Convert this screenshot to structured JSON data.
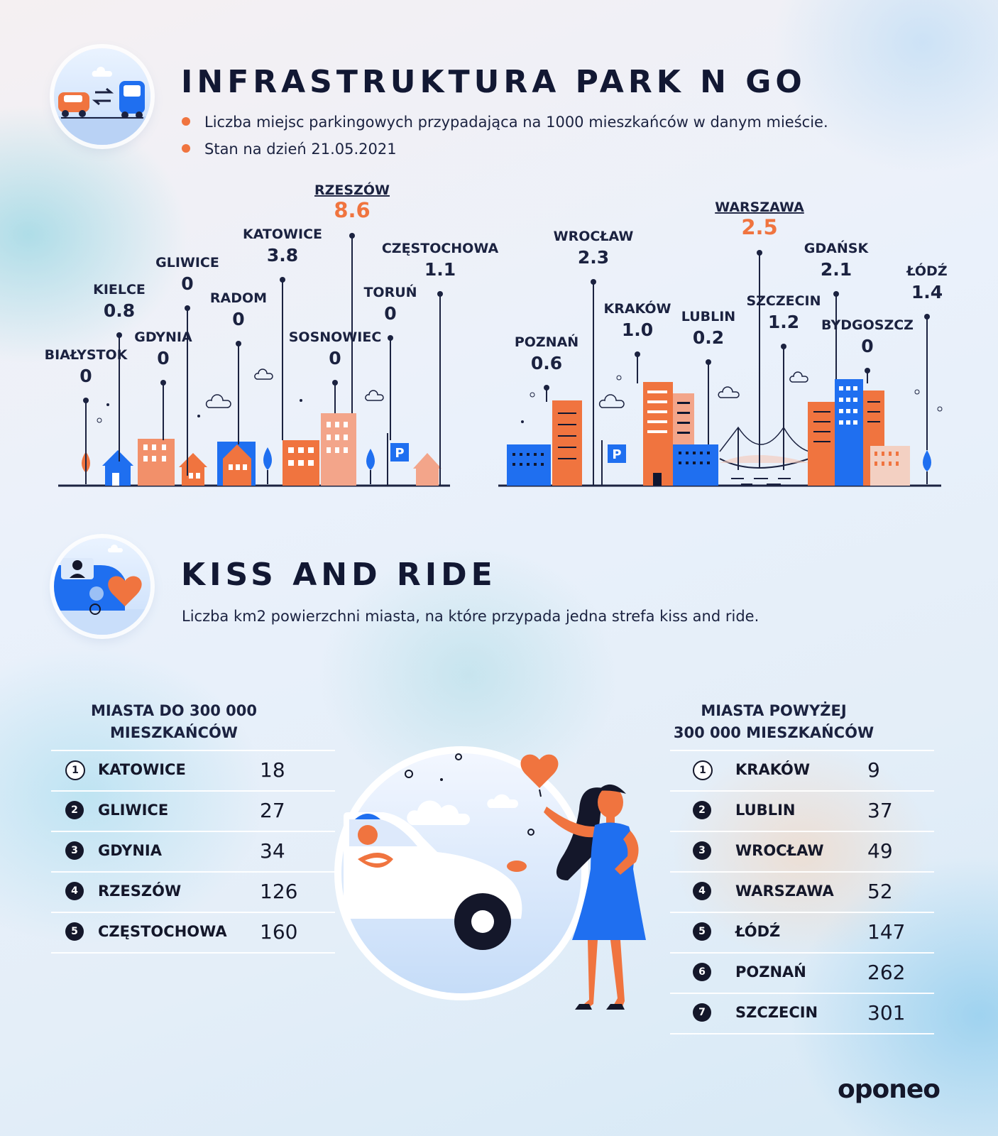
{
  "park_n_go": {
    "title": "INFRASTRUKTURA PARK N GO",
    "bullets": [
      "Liczba miejsc parkingowych przypadająca na 1000 mieszkańców w danym mieście.",
      "Stan na dzień 21.05.2021"
    ]
  },
  "kiss_and_ride": {
    "title": "KISS AND RIDE",
    "subtitle": "Liczba km2 powierzchni miasta, na które przypada jedna strefa kiss and ride.",
    "small_cities": {
      "heading_line1": "MIASTA DO 300 000",
      "heading_line2": "MIESZKAŃCÓW"
    },
    "large_cities": {
      "heading_line1": "MIASTA POWYŻEJ",
      "heading_line2": "300 000 MIESZKAŃCÓW"
    }
  },
  "parking_icon_label": "P",
  "brand": "oponeo",
  "colors": {
    "orange": "#f0743f",
    "blue": "#1f6ff0",
    "navy": "#14172a"
  },
  "chart_data": [
    {
      "type": "table",
      "title": "INFRASTRUKTURA PARK N GO — miasta do 300 000 mieszkańców",
      "unit": "miejsca parkingowe / 1000 mieszkańców",
      "categories": [
        "BIAŁYSTOK",
        "KIELCE",
        "GDYNIA",
        "GLIWICE",
        "RADOM",
        "KATOWICE",
        "SOSNOWIEC",
        "RZESZÓW",
        "TORUŃ",
        "CZĘSTOCHOWA"
      ],
      "values": [
        0,
        0.8,
        0,
        0,
        0,
        3.8,
        0,
        8.6,
        0,
        1.1
      ],
      "labels": [
        "0",
        "0.8",
        "0",
        "0",
        "0",
        "3.8",
        "0",
        "8.6",
        "0",
        "1.1"
      ],
      "highlight": "RZESZÓW"
    },
    {
      "type": "table",
      "title": "INFRASTRUKTURA PARK N GO — miasta powyżej 300 000 mieszkańców",
      "unit": "miejsca parkingowe / 1000 mieszkańców",
      "categories": [
        "POZNAŃ",
        "WROCŁAW",
        "KRAKÓW",
        "LUBLIN",
        "WARSZAWA",
        "SZCZECIN",
        "GDAŃSK",
        "BYDGOSZCZ",
        "ŁÓDŹ"
      ],
      "values": [
        0.6,
        2.3,
        1.0,
        0.2,
        2.5,
        1.2,
        2.1,
        0,
        1.4
      ],
      "labels": [
        "0.6",
        "2.3",
        "1.0",
        "0.2",
        "2.5",
        "1.2",
        "2.1",
        "0",
        "1.4"
      ],
      "highlight": "WARSZAWA"
    },
    {
      "type": "table",
      "title": "KISS AND RIDE — MIASTA DO 300 000 MIESZKAŃCÓW",
      "unit": "km2 na jedną strefę",
      "ranks": [
        "1",
        "2",
        "3",
        "4",
        "5"
      ],
      "categories": [
        "KATOWICE",
        "GLIWICE",
        "GDYNIA",
        "RZESZÓW",
        "CZĘSTOCHOWA"
      ],
      "values": [
        18,
        27,
        34,
        126,
        160
      ],
      "labels": [
        "18",
        "27",
        "34",
        "126",
        "160"
      ]
    },
    {
      "type": "table",
      "title": "KISS AND RIDE — MIASTA POWYŻEJ 300 000 MIESZKAŃCÓW",
      "unit": "km2 na jedną strefę",
      "ranks": [
        "1",
        "2",
        "3",
        "4",
        "5",
        "6",
        "7"
      ],
      "categories": [
        "KRAKÓW",
        "LUBLIN",
        "WROCŁAW",
        "WARSZAWA",
        "ŁÓDŹ",
        "POZNAŃ",
        "SZCZECIN"
      ],
      "values": [
        9,
        37,
        49,
        52,
        147,
        262,
        301
      ],
      "labels": [
        "9",
        "37",
        "49",
        "52",
        "147",
        "262",
        "301"
      ]
    }
  ]
}
